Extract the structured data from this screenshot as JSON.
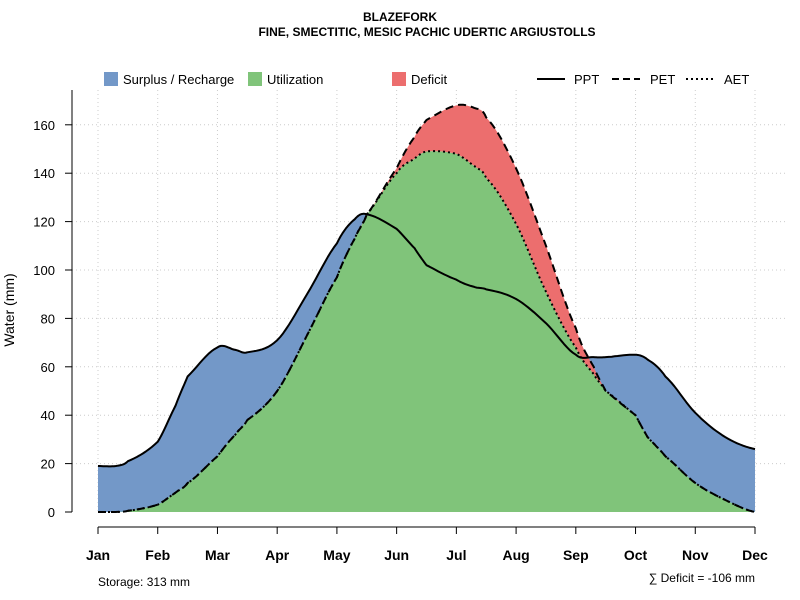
{
  "chart_data": {
    "type": "area",
    "title": "BLAZEFORK",
    "subtitle": "FINE, SMECTITIC, MESIC PACHIC UDERTIC ARGIUSTOLLS",
    "ylabel": "Water (mm)",
    "xlabel": "",
    "ylim": [
      0,
      175
    ],
    "yticks": [
      "0",
      "20",
      "40",
      "60",
      "80",
      "100",
      "120",
      "140",
      "160"
    ],
    "categories": [
      "Jan",
      "Feb",
      "Mar",
      "Apr",
      "May",
      "Jun",
      "Jul",
      "Aug",
      "Sep",
      "Oct",
      "Nov",
      "Dec"
    ],
    "x": [
      1,
      1.3,
      1.5,
      2,
      2.3,
      2.5,
      3,
      3.3,
      3.5,
      4,
      4.5,
      5,
      5.3,
      5.5,
      6,
      6.3,
      6.5,
      7,
      7.3,
      7.5,
      8,
      8.5,
      9,
      9.3,
      9.5,
      10,
      10.2,
      10.5,
      11,
      11.5,
      12
    ],
    "series": [
      {
        "name": "PPT",
        "style": "solid",
        "values": [
          19,
          19,
          21,
          29,
          44,
          56,
          68,
          67,
          66,
          71,
          90,
          111,
          121,
          123,
          117,
          109,
          102,
          96,
          93,
          92,
          88,
          78,
          65,
          64,
          64,
          65,
          63,
          56,
          41,
          31,
          26
        ]
      },
      {
        "name": "PET",
        "style": "dashed",
        "values": [
          0,
          0,
          0.5,
          3,
          8,
          12,
          23,
          32,
          38,
          50,
          73,
          97,
          113,
          123,
          142,
          155,
          162,
          168,
          167,
          163,
          142,
          110,
          76,
          60,
          50,
          40,
          31,
          23,
          12,
          5,
          0
        ]
      },
      {
        "name": "AET",
        "style": "dotted",
        "values": [
          0,
          0,
          0.5,
          3,
          8,
          12,
          23,
          32,
          38,
          50,
          73,
          97,
          113,
          123,
          140,
          146,
          149,
          148,
          143,
          138,
          119,
          91,
          68,
          57,
          50,
          40,
          31,
          23,
          12,
          5,
          0
        ]
      }
    ],
    "fill_legend": [
      "Surplus / Recharge",
      "Utilization",
      "Deficit"
    ],
    "line_legend": [
      "PPT",
      "PET",
      "AET"
    ],
    "colors": {
      "surplus": "#7398C8",
      "utilization": "#80C47A",
      "deficit": "#EC6E6E",
      "grid": "#cccccc"
    },
    "grid": true,
    "legend_position": "top",
    "storage_note": "Storage: 313 mm",
    "deficit_note": "∑ Deficit = -106 mm"
  }
}
